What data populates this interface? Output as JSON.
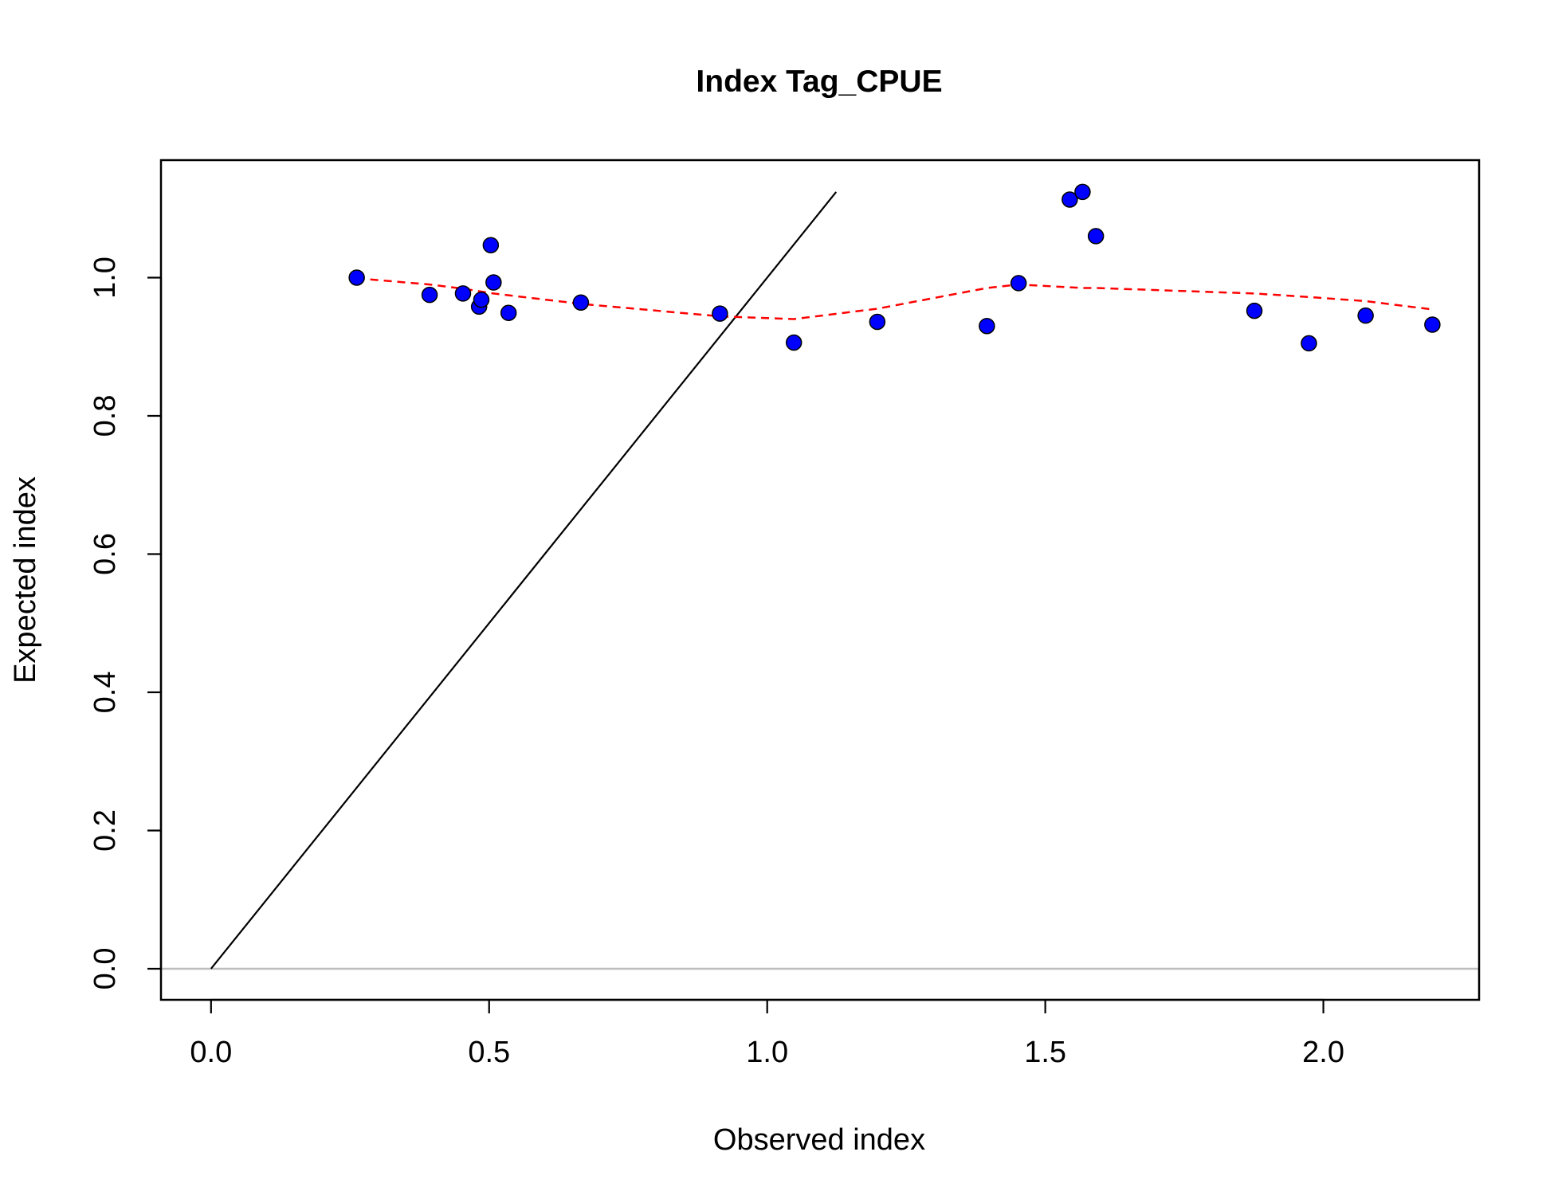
{
  "chart_data": {
    "type": "scatter",
    "title": "Index Tag_CPUE",
    "xlabel": "Observed index",
    "ylabel": "Expected index",
    "xlim": [
      -0.09,
      2.28
    ],
    "ylim": [
      -0.045,
      1.17
    ],
    "xticks": [
      {
        "value": 0.0,
        "label": "0.0"
      },
      {
        "value": 0.5,
        "label": "0.5"
      },
      {
        "value": 1.0,
        "label": "1.0"
      },
      {
        "value": 1.5,
        "label": "1.5"
      },
      {
        "value": 2.0,
        "label": "2.0"
      }
    ],
    "yticks": [
      {
        "value": 0.0,
        "label": "0.0"
      },
      {
        "value": 0.2,
        "label": "0.2"
      },
      {
        "value": 0.4,
        "label": "0.4"
      },
      {
        "value": 0.6,
        "label": "0.6"
      },
      {
        "value": 0.8,
        "label": "0.8"
      },
      {
        "value": 1.0,
        "label": "1.0"
      }
    ],
    "points": {
      "x": [
        0.262,
        0.393,
        0.453,
        0.482,
        0.486,
        0.503,
        0.508,
        0.535,
        0.665,
        0.915,
        1.048,
        1.198,
        1.395,
        1.452,
        1.544,
        1.567,
        1.591,
        1.876,
        1.974,
        2.076,
        2.196
      ],
      "y": [
        1.0,
        0.975,
        0.977,
        0.958,
        0.968,
        1.047,
        0.993,
        0.949,
        0.964,
        0.948,
        0.906,
        0.936,
        0.93,
        0.992,
        1.113,
        1.124,
        1.06,
        0.952,
        0.905,
        0.945,
        0.932
      ],
      "color": "#0000ff",
      "edge_color": "#000000"
    },
    "smoother": {
      "style": "dashed",
      "color": "#ff0000",
      "x": [
        0.262,
        0.393,
        0.453,
        0.508,
        0.665,
        0.915,
        1.048,
        1.198,
        1.395,
        1.452,
        1.567,
        1.591,
        1.876,
        1.974,
        2.076,
        2.196
      ],
      "y": [
        0.999,
        0.99,
        0.984,
        0.977,
        0.962,
        0.944,
        0.94,
        0.955,
        0.985,
        0.99,
        0.985,
        0.985,
        0.977,
        0.972,
        0.966,
        0.954
      ]
    },
    "reference_line": {
      "description": "y = x",
      "color": "#000000",
      "x": [
        0.0,
        1.124
      ],
      "y": [
        0.0,
        1.124
      ]
    },
    "hline": {
      "y": 0.0,
      "color": "#bebebe"
    },
    "grid": false,
    "legend": "none"
  }
}
